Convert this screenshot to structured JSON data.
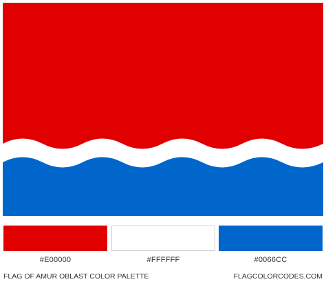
{
  "flag": {
    "colors": {
      "red": "#E00000",
      "white": "#FFFFFF",
      "blue": "#0066CC"
    }
  },
  "palette": [
    {
      "hex": "#E00000",
      "label": "#E00000"
    },
    {
      "hex": "#FFFFFF",
      "label": "#FFFFFF"
    },
    {
      "hex": "#0066CC",
      "label": "#0066CC"
    }
  ],
  "footer": {
    "title": "FLAG OF AMUR OBLAST COLOR PALETTE",
    "site": "FLAGCOLORCODES.COM"
  }
}
